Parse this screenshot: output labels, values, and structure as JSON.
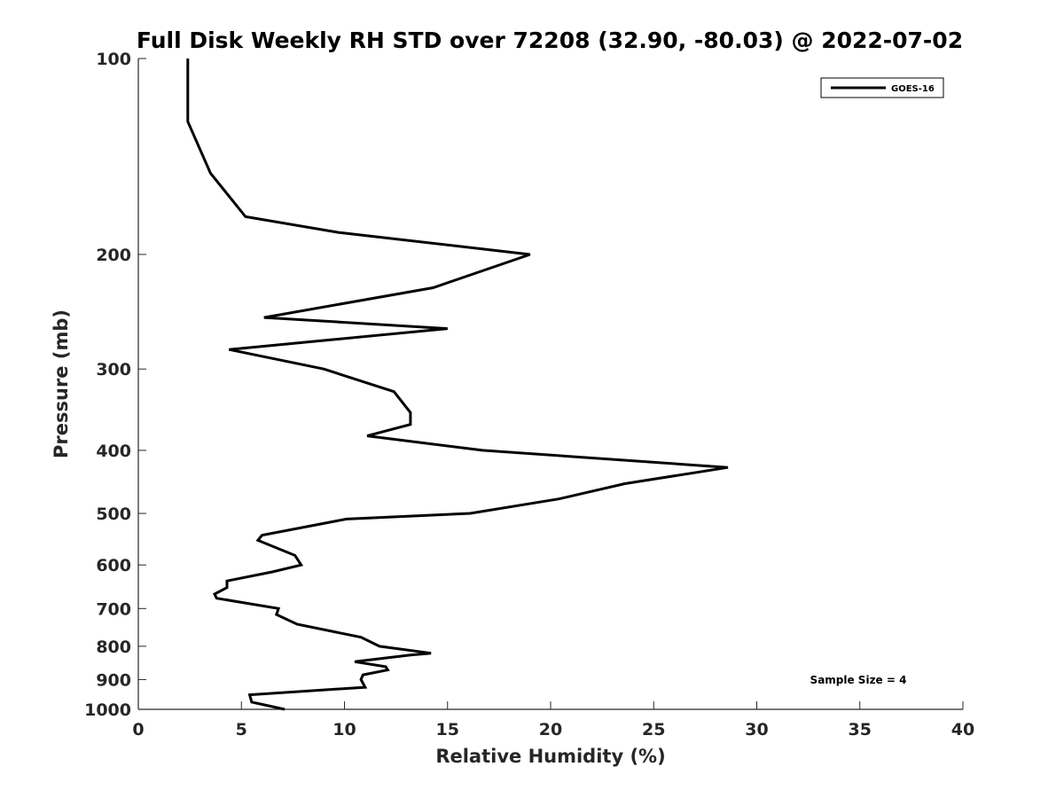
{
  "chart_data": {
    "type": "line",
    "title": "Full Disk Weekly RH STD over 72208 (32.90, -80.03) @ 2022-07-02",
    "xlabel": "Relative Humidity (%)",
    "ylabel": "Pressure (mb)",
    "xlim": [
      0,
      40
    ],
    "ylim": [
      100,
      1000
    ],
    "y_scale": "log",
    "y_reversed": true,
    "grid": false,
    "legend_position": "top-right",
    "x_ticks": [
      0,
      5,
      10,
      15,
      20,
      25,
      30,
      35,
      40
    ],
    "y_ticks": [
      100,
      200,
      300,
      400,
      500,
      600,
      700,
      800,
      900,
      1000
    ],
    "annotation": "Sample Size = 4",
    "series": [
      {
        "name": "GOES-16",
        "color": "#000000",
        "points": [
          [
            2.4,
            100
          ],
          [
            2.4,
            125
          ],
          [
            3.5,
            150
          ],
          [
            5.2,
            175
          ],
          [
            9.7,
            185
          ],
          [
            19.0,
            200
          ],
          [
            14.3,
            225
          ],
          [
            6.1,
            250
          ],
          [
            15.0,
            260
          ],
          [
            4.4,
            280
          ],
          [
            9.0,
            300
          ],
          [
            12.4,
            325
          ],
          [
            13.2,
            350
          ],
          [
            13.2,
            365
          ],
          [
            11.1,
            380
          ],
          [
            16.7,
            400
          ],
          [
            28.6,
            425
          ],
          [
            23.6,
            450
          ],
          [
            20.4,
            475
          ],
          [
            16.1,
            500
          ],
          [
            10.1,
            510
          ],
          [
            6.0,
            540
          ],
          [
            5.8,
            550
          ],
          [
            7.6,
            580
          ],
          [
            7.9,
            600
          ],
          [
            6.5,
            615
          ],
          [
            4.3,
            635
          ],
          [
            4.3,
            650
          ],
          [
            3.7,
            665
          ],
          [
            3.8,
            675
          ],
          [
            6.8,
            700
          ],
          [
            6.7,
            715
          ],
          [
            7.7,
            740
          ],
          [
            10.8,
            775
          ],
          [
            11.7,
            800
          ],
          [
            14.2,
            820
          ],
          [
            13.2,
            825
          ],
          [
            10.5,
            845
          ],
          [
            12.0,
            860
          ],
          [
            12.1,
            870
          ],
          [
            10.9,
            885
          ],
          [
            10.8,
            900
          ],
          [
            11.0,
            925
          ],
          [
            5.4,
            950
          ],
          [
            5.5,
            975
          ],
          [
            7.1,
            1000
          ]
        ]
      }
    ]
  }
}
